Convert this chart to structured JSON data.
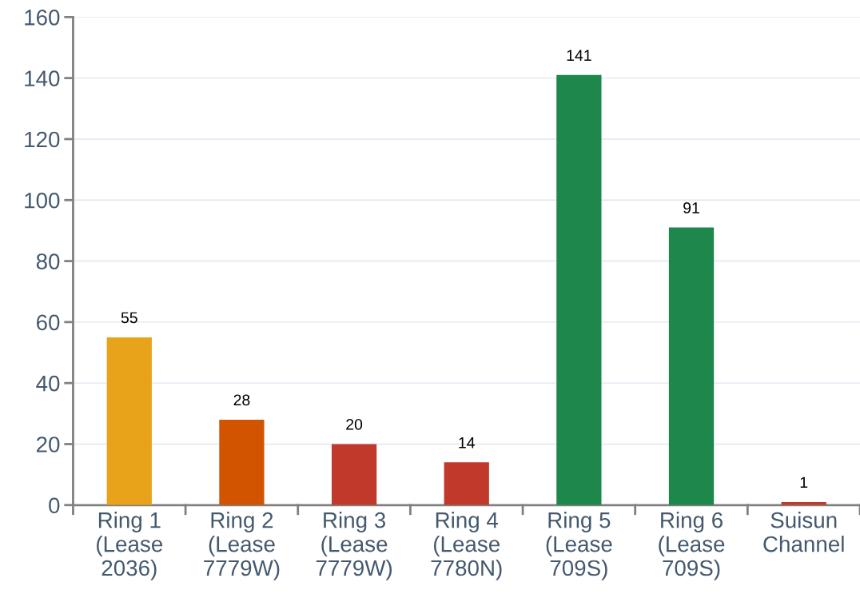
{
  "chart_data": {
    "type": "bar",
    "categories": [
      "Ring 1\n(Lease\n2036)",
      "Ring 2\n(Lease\n7779W)",
      "Ring 3\n(Lease\n7779W)",
      "Ring 4\n(Lease\n7780N)",
      "Ring 5\n(Lease\n709S)",
      "Ring 6\n(Lease\n709S)",
      "Suisun\nChannel"
    ],
    "values": [
      55,
      28,
      20,
      14,
      141,
      91,
      1
    ],
    "colors": [
      "#e8a31b",
      "#d35400",
      "#c0392b",
      "#c0392b",
      "#1e874b",
      "#1e874b",
      "#c0392b"
    ],
    "ylim": [
      0,
      160
    ],
    "yticks": [
      0,
      20,
      40,
      60,
      80,
      100,
      120,
      140,
      160
    ],
    "grid": "y",
    "data_labels": true,
    "legend": false
  }
}
